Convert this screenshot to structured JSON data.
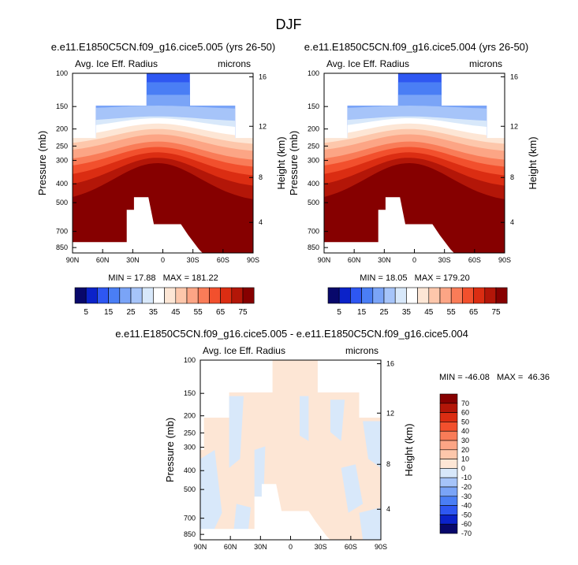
{
  "page_title": "DJF",
  "chart_data": [
    {
      "type": "heatmap",
      "title": "e.e11.E1850C5CN.f09_g16.cice5.005 (yrs 26-50)",
      "left_label": "Avg. Ice Eff. Radius",
      "right_label": "microns",
      "ylabel_left": "Pressure (mb)",
      "ylabel_right": "Height (km)",
      "x_ticks": [
        "90N",
        "60N",
        "30N",
        "0",
        "30S",
        "60S",
        "90S"
      ],
      "y_ticks_left": [
        "100",
        "150",
        "200",
        "250",
        "300",
        "400",
        "500",
        "700",
        "850"
      ],
      "y_ticks_right": [
        "16",
        "12",
        "8",
        "4"
      ],
      "stats": "MIN = 17.88   MAX = 181.22",
      "min": 17.88,
      "max": 181.22
    },
    {
      "type": "heatmap",
      "title": "e.e11.E1850C5CN.f09_g16.cice5.004 (yrs 26-50)",
      "left_label": "Avg. Ice Eff. Radius",
      "right_label": "microns",
      "ylabel_left": "Pressure (mb)",
      "ylabel_right": "Height (km)",
      "x_ticks": [
        "90N",
        "60N",
        "30N",
        "0",
        "30S",
        "60S",
        "90S"
      ],
      "y_ticks_left": [
        "100",
        "150",
        "200",
        "250",
        "300",
        "400",
        "500",
        "700",
        "850"
      ],
      "y_ticks_right": [
        "16",
        "12",
        "8",
        "4"
      ],
      "stats": "MIN = 18.05   MAX = 179.20",
      "min": 18.05,
      "max": 179.2
    },
    {
      "type": "heatmap",
      "title": "e.e11.E1850C5CN.f09_g16.cice5.005 - e.e11.E1850C5CN.f09_g16.cice5.004",
      "left_label": "Avg. Ice Eff. Radius",
      "right_label": "microns",
      "ylabel_left": "Pressure (mb)",
      "ylabel_right": "Height (km)",
      "x_ticks": [
        "90N",
        "60N",
        "30N",
        "0",
        "30S",
        "60S",
        "90S"
      ],
      "y_ticks_left": [
        "100",
        "150",
        "200",
        "250",
        "300",
        "400",
        "500",
        "700",
        "850"
      ],
      "y_ticks_right": [
        "16",
        "12",
        "8",
        "4"
      ],
      "stats": "MIN = -46.08   MAX =  46.36",
      "min": -46.08,
      "max": 46.36
    }
  ],
  "colorbar_abs": {
    "labels": [
      "5",
      "15",
      "25",
      "35",
      "45",
      "55",
      "65",
      "75"
    ],
    "colors": [
      "#08086b",
      "#0b22c9",
      "#2e57f2",
      "#4a7ef5",
      "#7aa4f7",
      "#a6c4f9",
      "#d8e8fa",
      "#ffffff",
      "#fde6d5",
      "#fdc7ab",
      "#fca585",
      "#f97c58",
      "#f2502d",
      "#db2d12",
      "#b31608",
      "#860000"
    ]
  },
  "colorbar_diff": {
    "labels": [
      "70",
      "60",
      "50",
      "40",
      "30",
      "20",
      "10",
      "0",
      "-10",
      "-20",
      "-30",
      "-40",
      "-50",
      "-60",
      "-70"
    ],
    "colors": [
      "#860000",
      "#b31608",
      "#db2d12",
      "#f2502d",
      "#f97c58",
      "#fca585",
      "#fdc7ab",
      "#fde6d5",
      "#d8e8fa",
      "#a6c4f9",
      "#7aa4f7",
      "#4a7ef5",
      "#2e57f2",
      "#0b22c9",
      "#08086b"
    ]
  }
}
